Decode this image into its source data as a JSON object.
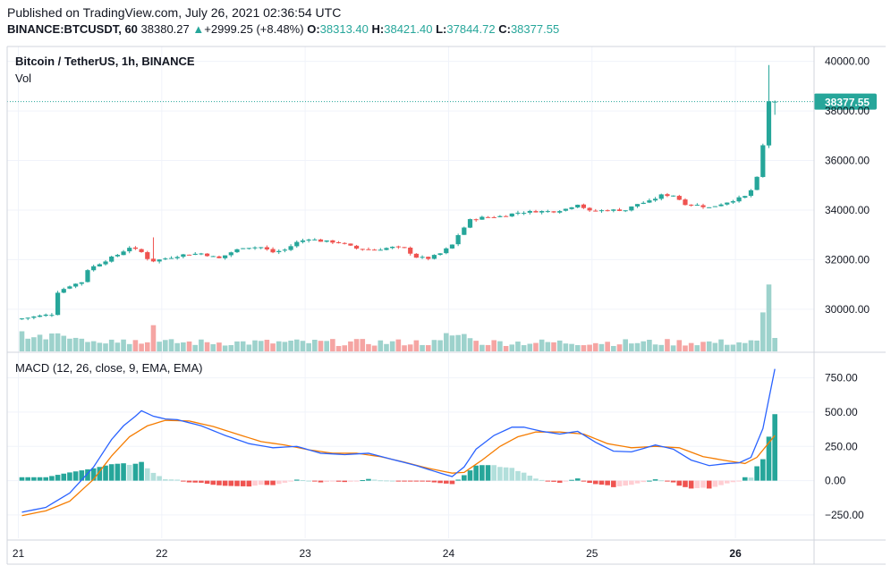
{
  "header": {
    "published": "Published on TradingView.com, July 26, 2021 02:36:54 UTC",
    "symbol": "BINANCE:BTCUSDT, 60",
    "last": "38380.27",
    "change_arrow": "▲",
    "change": "+2999.25 (+8.48%)",
    "o_label": "O:",
    "o": "38313.40",
    "h_label": "H:",
    "h": "38421.40",
    "l_label": "L:",
    "l": "37844.72",
    "c_label": "C:",
    "c": "38377.55"
  },
  "colors": {
    "up": "#26a69a",
    "down": "#ef5350",
    "vol_up": "#9dd2cc",
    "vol_down": "#f5a5a3",
    "macd_line": "#2962ff",
    "signal_line": "#f57c00",
    "hist_up_strong": "#26a69a",
    "hist_up_weak": "#b2dfdb",
    "hist_down_strong": "#ef5350",
    "hist_down_weak": "#ffcdd2",
    "grid": "#f0f3fa"
  },
  "chart_data": {
    "type": "candlestick",
    "title": "Bitcoin / TetherUS, 1h, BINANCE",
    "volume_label": "Vol",
    "last_price_label": "38377.55",
    "last_price": 38377.55,
    "price_ylim": [
      28300,
      40600
    ],
    "price_ticks": [
      "40000.00",
      "38000.00",
      "36000.00",
      "34000.00",
      "32000.00",
      "30000.00"
    ],
    "price_tick_values": [
      40000,
      38000,
      36000,
      34000,
      32000,
      30000
    ],
    "x_ticks": [
      "21",
      "22",
      "23",
      "24",
      "25",
      "26"
    ],
    "x_tick_hours": [
      0,
      24,
      48,
      72,
      96,
      120
    ],
    "total_hours": 127,
    "close_anchors": [
      [
        0,
        29630
      ],
      [
        5,
        29800
      ],
      [
        6,
        30700
      ],
      [
        8,
        30950
      ],
      [
        10,
        31100
      ],
      [
        11,
        31600
      ],
      [
        13,
        31850
      ],
      [
        16,
        32200
      ],
      [
        18,
        32500
      ],
      [
        20,
        32300
      ],
      [
        21,
        32050
      ],
      [
        22,
        31950
      ],
      [
        24,
        32050
      ],
      [
        27,
        32200
      ],
      [
        30,
        32250
      ],
      [
        33,
        32050
      ],
      [
        35,
        32300
      ],
      [
        37,
        32500
      ],
      [
        40,
        32500
      ],
      [
        42,
        32300
      ],
      [
        44,
        32400
      ],
      [
        46,
        32700
      ],
      [
        48,
        32850
      ],
      [
        50,
        32750
      ],
      [
        53,
        32700
      ],
      [
        56,
        32450
      ],
      [
        59,
        32400
      ],
      [
        62,
        32500
      ],
      [
        64,
        32450
      ],
      [
        66,
        32100
      ],
      [
        68,
        32050
      ],
      [
        70,
        32250
      ],
      [
        72,
        32600
      ],
      [
        73,
        33000
      ],
      [
        75,
        33600
      ],
      [
        77,
        33700
      ],
      [
        80,
        33750
      ],
      [
        83,
        33900
      ],
      [
        86,
        33950
      ],
      [
        89,
        33950
      ],
      [
        91,
        34050
      ],
      [
        93,
        34250
      ],
      [
        95,
        33950
      ],
      [
        98,
        34000
      ],
      [
        101,
        34000
      ],
      [
        103,
        34250
      ],
      [
        105,
        34350
      ],
      [
        107,
        34600
      ],
      [
        109,
        34600
      ],
      [
        111,
        34250
      ],
      [
        113,
        34200
      ],
      [
        115,
        34100
      ],
      [
        117,
        34250
      ],
      [
        119,
        34400
      ],
      [
        121,
        34550
      ],
      [
        122,
        34800
      ],
      [
        123,
        35300
      ],
      [
        124,
        36600
      ],
      [
        125,
        38400
      ],
      [
        126,
        38377.55
      ]
    ],
    "volume_spikes": [
      [
        22,
        2.1
      ],
      [
        124,
        3.2
      ],
      [
        125,
        5.6
      ],
      [
        126,
        1.0
      ]
    ],
    "macd": {
      "label": "MACD (12, 26, close, 9, EMA, EMA)",
      "ylim": [
        -420,
        930
      ],
      "ticks": [
        "750.00",
        "500.00",
        "250.00",
        "0.00",
        "−250.00"
      ],
      "tick_values": [
        750,
        500,
        250,
        0,
        -250
      ],
      "macd_line": [
        [
          0,
          -230
        ],
        [
          4,
          -195
        ],
        [
          8,
          -90
        ],
        [
          12,
          100
        ],
        [
          15,
          300
        ],
        [
          17,
          400
        ],
        [
          19,
          470
        ],
        [
          20,
          510
        ],
        [
          22,
          470
        ],
        [
          24,
          450
        ],
        [
          26,
          445
        ],
        [
          30,
          400
        ],
        [
          34,
          330
        ],
        [
          38,
          270
        ],
        [
          42,
          240
        ],
        [
          46,
          250
        ],
        [
          50,
          200
        ],
        [
          54,
          190
        ],
        [
          58,
          200
        ],
        [
          62,
          155
        ],
        [
          66,
          110
        ],
        [
          70,
          55
        ],
        [
          72,
          30
        ],
        [
          74,
          100
        ],
        [
          76,
          230
        ],
        [
          79,
          330
        ],
        [
          82,
          390
        ],
        [
          84,
          390
        ],
        [
          87,
          360
        ],
        [
          90,
          340
        ],
        [
          93,
          360
        ],
        [
          96,
          280
        ],
        [
          99,
          215
        ],
        [
          102,
          210
        ],
        [
          106,
          260
        ],
        [
          109,
          230
        ],
        [
          112,
          150
        ],
        [
          115,
          110
        ],
        [
          118,
          125
        ],
        [
          120,
          130
        ],
        [
          122,
          170
        ],
        [
          124,
          380
        ],
        [
          126,
          815
        ]
      ],
      "signal_line": [
        [
          0,
          -255
        ],
        [
          4,
          -220
        ],
        [
          8,
          -150
        ],
        [
          12,
          10
        ],
        [
          15,
          180
        ],
        [
          18,
          320
        ],
        [
          21,
          400
        ],
        [
          24,
          440
        ],
        [
          28,
          435
        ],
        [
          32,
          395
        ],
        [
          36,
          340
        ],
        [
          40,
          285
        ],
        [
          44,
          260
        ],
        [
          48,
          225
        ],
        [
          52,
          200
        ],
        [
          56,
          200
        ],
        [
          60,
          175
        ],
        [
          64,
          135
        ],
        [
          68,
          90
        ],
        [
          72,
          55
        ],
        [
          74,
          60
        ],
        [
          77,
          150
        ],
        [
          80,
          250
        ],
        [
          83,
          320
        ],
        [
          86,
          355
        ],
        [
          90,
          355
        ],
        [
          94,
          340
        ],
        [
          98,
          270
        ],
        [
          102,
          240
        ],
        [
          106,
          250
        ],
        [
          110,
          240
        ],
        [
          114,
          175
        ],
        [
          118,
          145
        ],
        [
          121,
          125
        ],
        [
          123,
          170
        ],
        [
          126,
          330
        ]
      ]
    }
  }
}
